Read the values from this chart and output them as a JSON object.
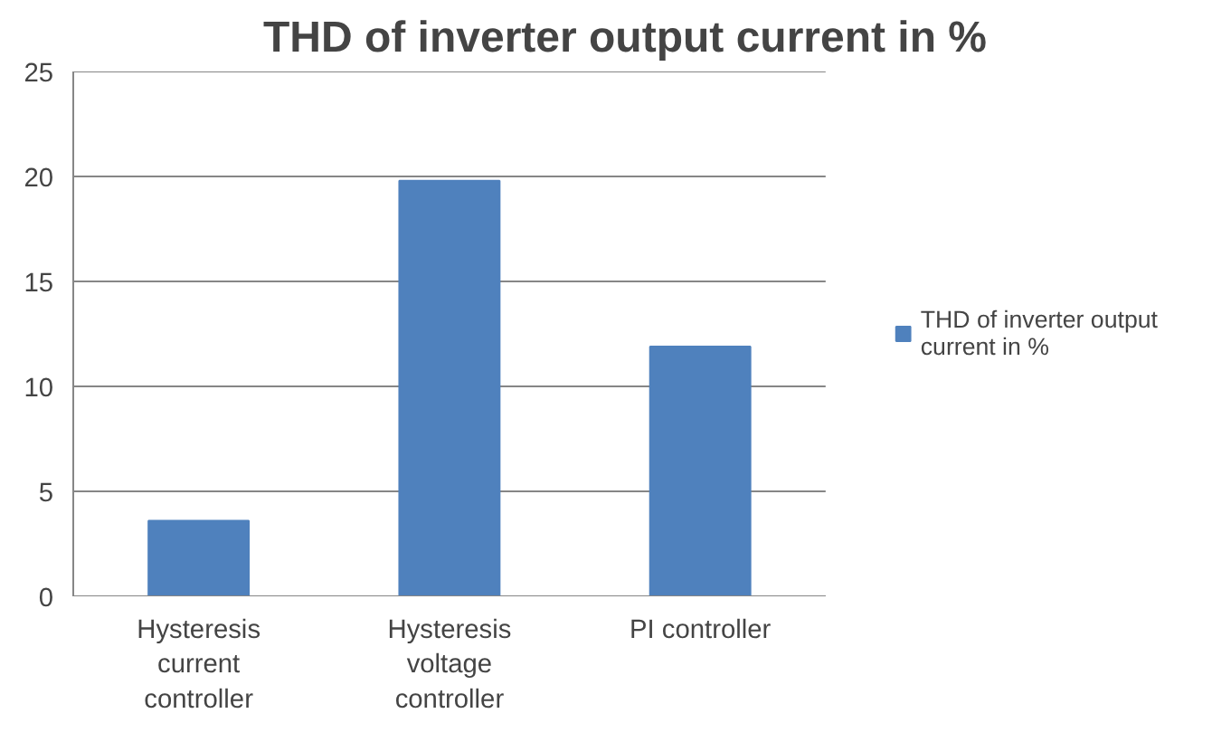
{
  "chart_data": {
    "type": "bar",
    "title": "THD of inverter output current in %",
    "categories": [
      "Hysteresis current controller",
      "Hysteresis voltage controller",
      "PI controller"
    ],
    "series": [
      {
        "name": "THD of inverter output current in %",
        "color": "#4f81bd",
        "values": [
          3.6,
          19.8,
          11.9
        ]
      }
    ],
    "ylim": [
      0,
      25
    ],
    "yticks": [
      0,
      5,
      10,
      15,
      20,
      25
    ],
    "grid": "y",
    "legend": "right"
  }
}
